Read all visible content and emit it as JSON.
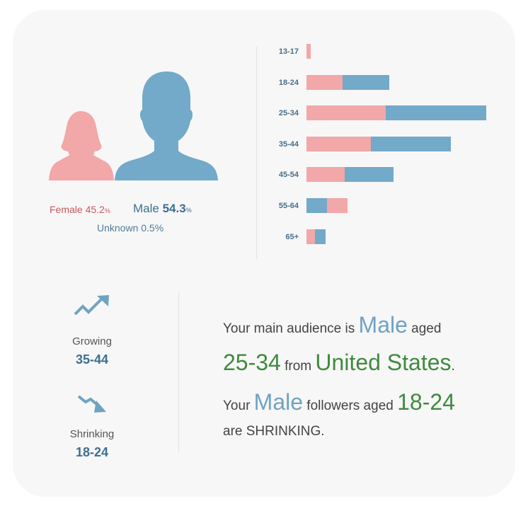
{
  "gender": {
    "female_label": "Female",
    "female_value": "45.2",
    "female_unit": "%",
    "male_label": "Male",
    "male_value": "54.3",
    "male_unit": "%",
    "unknown_text": "Unknown 0.5%",
    "colors": {
      "female": "#f2a7a8",
      "male": "#73a9c9"
    }
  },
  "chart_data": {
    "type": "bar",
    "orientation": "horizontal",
    "stacked": true,
    "categories": [
      "13-17",
      "18-24",
      "25-34",
      "35-44",
      "45-54",
      "55-64",
      "65+"
    ],
    "series": [
      {
        "name": "Female",
        "color": "#f2a7a8",
        "values": [
          1.0,
          8.5,
          18.5,
          15.0,
          9.0,
          4.8,
          2.0
        ]
      },
      {
        "name": "Male",
        "color": "#73a9c9",
        "values": [
          0.0,
          10.8,
          23.5,
          18.7,
          11.3,
          4.8,
          2.5
        ]
      }
    ],
    "female_drawn_after_male": [
      false,
      false,
      false,
      false,
      false,
      true,
      false
    ],
    "xlim": [
      0,
      45
    ],
    "grid": false,
    "title": "",
    "xlabel": "",
    "ylabel": ""
  },
  "trends": {
    "growing_title": "Growing",
    "growing_value": "35-44",
    "shrinking_title": "Shrinking",
    "shrinking_value": "18-24",
    "icon_color": "#6fa3c2"
  },
  "summary": {
    "line1_a": "Your main audience is ",
    "line1_gender": "Male",
    "line1_b": " aged",
    "line2_age": "25-34",
    "line2_from": " from ",
    "line2_country": "United States",
    "line2_dot": ".",
    "line3_a": "Your ",
    "line3_gender": "Male",
    "line3_b": " followers aged ",
    "line3_age": "18-24",
    "line4": "are SHRINKING."
  }
}
